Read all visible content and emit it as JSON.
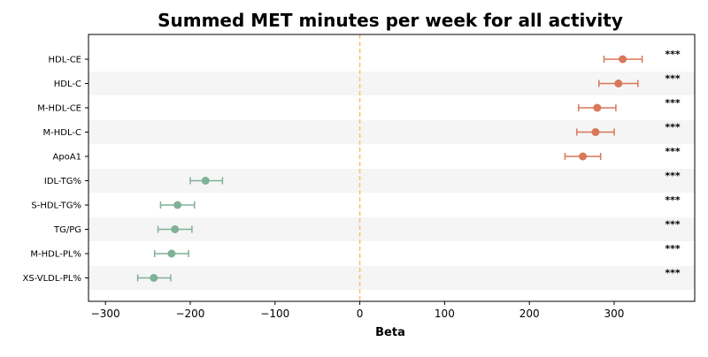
{
  "chart_data": {
    "type": "scatter",
    "subtype": "forest-plot",
    "title": "Summed MET minutes per week for all activity",
    "xlabel": "Beta",
    "ylabel": "",
    "xlim": [
      -320,
      395
    ],
    "xticks": [
      -300,
      -200,
      -100,
      0,
      100,
      200,
      300
    ],
    "xtick_labels": [
      "−300",
      "−200",
      "−100",
      "0",
      "100",
      "200",
      "300"
    ],
    "reference_line": 0,
    "grid": false,
    "categories": [
      "HDL-CE",
      "HDL-C",
      "M-HDL-CE",
      "M-HDL-C",
      "ApoA1",
      "IDL-TG%",
      "S-HDL-TG%",
      "TG/PG",
      "M-HDL-PL%",
      "XS-VLDL-PL%"
    ],
    "values": [
      310,
      305,
      280,
      278,
      263,
      -182,
      -215,
      -218,
      -222,
      -243
    ],
    "ci_low": [
      288,
      282,
      258,
      256,
      242,
      -200,
      -235,
      -238,
      -242,
      -262
    ],
    "ci_high": [
      333,
      328,
      302,
      300,
      284,
      -162,
      -195,
      -198,
      -202,
      -223
    ],
    "significance": [
      "***",
      "***",
      "***",
      "***",
      "***",
      "***",
      "***",
      "***",
      "***",
      "***"
    ],
    "colors": {
      "positive": "#d9775a",
      "negative": "#7fb196",
      "reference_line": "#f5c26b",
      "band": "#f5f5f5"
    }
  }
}
